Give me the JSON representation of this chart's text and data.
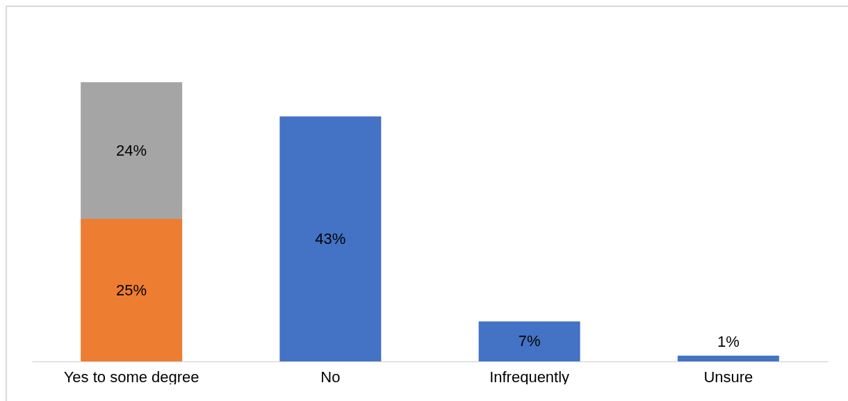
{
  "chart_data": {
    "type": "bar",
    "stacked": true,
    "categories": [
      "Yes to some degree",
      "No",
      "Infrequently",
      "Unsure"
    ],
    "series": [
      {
        "color": "#ed7d31",
        "values": [
          25,
          null,
          null,
          null
        ],
        "value_labels": [
          "25%",
          null,
          null,
          null
        ]
      },
      {
        "color": "#a5a5a5",
        "values": [
          24,
          null,
          null,
          null
        ],
        "value_labels": [
          "24%",
          null,
          null,
          null
        ]
      },
      {
        "color": "#4472c4",
        "values": [
          null,
          43,
          7,
          1
        ],
        "value_labels": [
          null,
          "43%",
          "7%",
          "1%"
        ]
      }
    ]
  }
}
